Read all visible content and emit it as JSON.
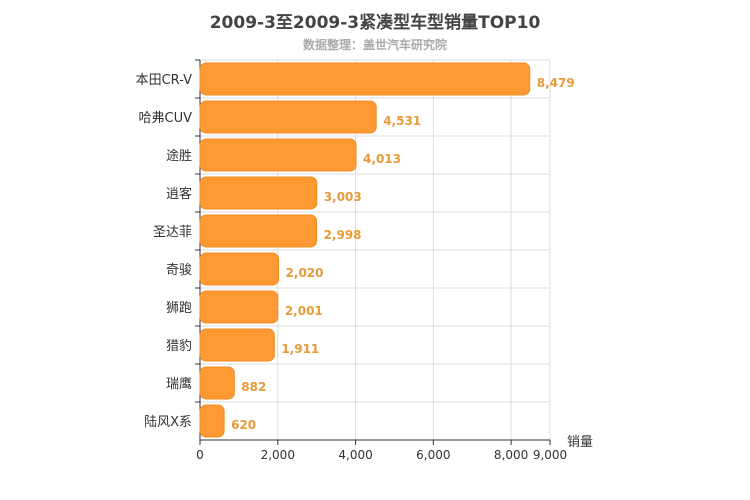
{
  "title": "2009-3至2009-3紧凑型车型销量TOP10",
  "subtitle": "数据整理：盖世汽车研究院",
  "colors": {
    "bar": "#ff9933",
    "bar_stroke": "#f08a22",
    "value_label": "#e89a3a",
    "grid": "#dddddd",
    "axis": "#333333"
  },
  "chart_data": {
    "type": "bar",
    "orientation": "horizontal",
    "title": "2009-3至2009-3紧凑型车型销量TOP10",
    "subtitle": "数据整理：盖世汽车研究院",
    "xlabel": "销量",
    "ylabel": "",
    "categories": [
      "本田CR-V",
      "哈弗CUV",
      "途胜",
      "逍客",
      "圣达菲",
      "奇骏",
      "狮跑",
      "猎豹",
      "瑞鹰",
      "陆风X系"
    ],
    "values": [
      8479,
      4531,
      4013,
      3003,
      2998,
      2020,
      2001,
      1911,
      882,
      620
    ],
    "value_labels": [
      "8,479",
      "4,531",
      "4,013",
      "3,003",
      "2,998",
      "2,020",
      "2,001",
      "1,911",
      "882",
      "620"
    ],
    "xlim": [
      0,
      9000
    ],
    "ticks": [
      0,
      2000,
      4000,
      6000,
      8000,
      9000
    ],
    "tick_labels": [
      "0",
      "2,000",
      "4,000",
      "6,000",
      "8,000",
      "9,000"
    ],
    "grid": true,
    "legend": "none"
  }
}
